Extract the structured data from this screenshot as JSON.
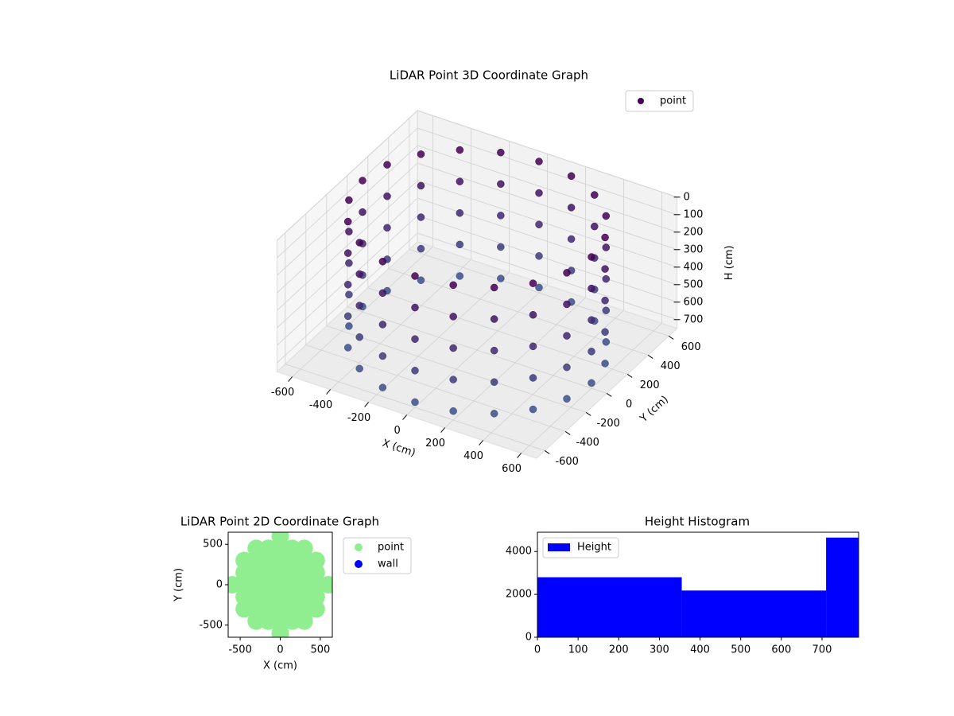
{
  "chart_data": [
    {
      "type": "scatter3d",
      "title": "LiDAR Point 3D Coordinate Graph",
      "xlabel": "X (cm)",
      "ylabel": "Y (cm)",
      "zlabel": "H (cm)",
      "xlim": [
        -680,
        680
      ],
      "ylim": [
        -680,
        680
      ],
      "zlim": [
        0,
        750
      ],
      "z_inverted": true,
      "xticks": [
        -600,
        -400,
        -200,
        0,
        200,
        400,
        600
      ],
      "yticks": [
        -600,
        -400,
        -200,
        0,
        200,
        400,
        600
      ],
      "zticks": [
        0,
        100,
        200,
        300,
        400,
        500,
        600,
        700
      ],
      "legend": "upper right",
      "colormap": [
        "#440154",
        "#3b528b"
      ],
      "series": [
        {
          "name": "point",
          "color": "#440154",
          "x": [
            600,
            571,
            485,
            353,
            185,
            0,
            -185,
            -353,
            -485,
            -571,
            -600,
            -571,
            -485,
            -353,
            -185,
            0,
            185,
            353,
            485,
            571,
            600,
            571,
            485,
            353,
            185,
            0,
            -185,
            -353,
            -485,
            -571,
            -600,
            -571,
            -485,
            -353,
            -185,
            0,
            185,
            353,
            485,
            571,
            600,
            571,
            485,
            353,
            185,
            0,
            -185,
            -353,
            -485,
            -571,
            -600,
            -571,
            -485,
            -353,
            -185,
            0,
            185,
            353,
            485,
            571,
            600,
            571,
            485,
            353,
            185,
            0,
            -185,
            -353,
            -485,
            -571,
            -600,
            -571,
            -485,
            -353,
            -185,
            0,
            185,
            353,
            485,
            571,
            600,
            571,
            485,
            353,
            185,
            0,
            -185,
            -353,
            -485,
            -571,
            -600,
            -571,
            -485,
            -353,
            -185,
            0,
            185,
            353,
            485,
            571
          ],
          "y": [
            0,
            185,
            353,
            485,
            571,
            600,
            571,
            485,
            353,
            185,
            0,
            -185,
            -353,
            -485,
            -571,
            -600,
            -571,
            -485,
            -353,
            -185,
            0,
            185,
            353,
            485,
            571,
            600,
            571,
            485,
            353,
            185,
            0,
            -185,
            -353,
            -485,
            -571,
            -600,
            -571,
            -485,
            -353,
            -185,
            0,
            185,
            353,
            485,
            571,
            600,
            571,
            485,
            353,
            185,
            0,
            -185,
            -353,
            -485,
            -571,
            -600,
            -571,
            -485,
            -353,
            -185,
            0,
            185,
            353,
            485,
            571,
            600,
            571,
            485,
            353,
            185,
            0,
            -185,
            -353,
            -485,
            -571,
            -600,
            -571,
            -485,
            -353,
            -185,
            0,
            185,
            353,
            485,
            571,
            600,
            571,
            485,
            353,
            185,
            0,
            -185,
            -353,
            -485,
            -571,
            -600,
            -571,
            -485,
            -353,
            -185
          ],
          "values": [
            0,
            0,
            0,
            0,
            0,
            0,
            0,
            0,
            0,
            0,
            0,
            0,
            0,
            0,
            0,
            0,
            0,
            0,
            0,
            0,
            180,
            180,
            180,
            180,
            180,
            180,
            180,
            180,
            180,
            180,
            180,
            180,
            180,
            180,
            180,
            180,
            180,
            180,
            180,
            180,
            360,
            360,
            360,
            360,
            360,
            360,
            360,
            360,
            360,
            360,
            360,
            360,
            360,
            360,
            360,
            360,
            360,
            360,
            360,
            360,
            540,
            540,
            540,
            540,
            540,
            540,
            540,
            540,
            540,
            540,
            540,
            540,
            540,
            540,
            540,
            540,
            540,
            540,
            540,
            540,
            720,
            720,
            720,
            720,
            720,
            720,
            720,
            720,
            720,
            720,
            720,
            720,
            720,
            720,
            720,
            720,
            720,
            720,
            720,
            720
          ]
        }
      ]
    },
    {
      "type": "scatter",
      "title": "LiDAR Point 2D Coordinate Graph",
      "xlabel": "X (cm)",
      "ylabel": "Y (cm)",
      "xlim": [
        -650,
        650
      ],
      "ylim": [
        -650,
        650
      ],
      "xticks": [
        -500,
        0,
        500
      ],
      "yticks": [
        -500,
        0,
        500
      ],
      "legend": "outside right",
      "series": [
        {
          "name": "point",
          "color": "#90ee90",
          "x": [
            -600,
            -450,
            -450,
            -450,
            -450,
            -450,
            -300,
            -300,
            -300,
            -300,
            -300,
            -300,
            -300,
            -150,
            -150,
            -150,
            -150,
            -150,
            -150,
            -150,
            0,
            0,
            0,
            0,
            0,
            0,
            0,
            0,
            0,
            150,
            150,
            150,
            150,
            150,
            150,
            150,
            300,
            300,
            300,
            300,
            300,
            300,
            300,
            450,
            450,
            450,
            450,
            450,
            600
          ],
          "values": [
            0,
            -300,
            -150,
            0,
            150,
            300,
            -450,
            -300,
            -150,
            0,
            150,
            300,
            450,
            -450,
            -300,
            -150,
            0,
            150,
            300,
            450,
            -600,
            -450,
            -300,
            -150,
            0,
            150,
            300,
            450,
            600,
            -450,
            -300,
            -150,
            0,
            150,
            300,
            450,
            -450,
            -300,
            -150,
            0,
            150,
            300,
            450,
            -300,
            -150,
            0,
            150,
            300,
            0
          ]
        },
        {
          "name": "wall",
          "color": "#0000ff",
          "x": [],
          "values": []
        }
      ]
    },
    {
      "type": "histogram",
      "title": "Height Histogram",
      "bins": [
        0,
        355,
        710,
        790
      ],
      "values": [
        2800,
        2180,
        4650
      ],
      "xlim": [
        0,
        790
      ],
      "ylim": [
        0,
        4900
      ],
      "xticks": [
        0,
        100,
        200,
        300,
        400,
        500,
        600,
        700
      ],
      "yticks": [
        0,
        2000,
        4000
      ],
      "legend": "upper left",
      "series_name": "Height",
      "color": "#0000ff"
    }
  ]
}
